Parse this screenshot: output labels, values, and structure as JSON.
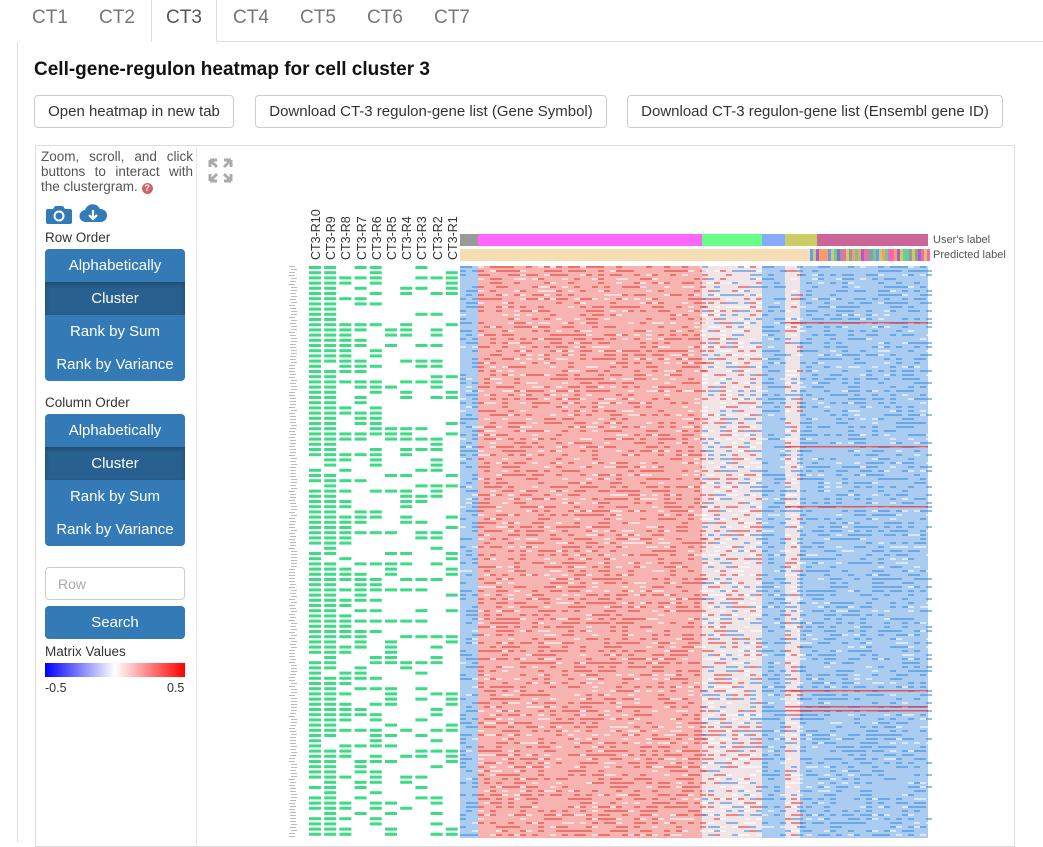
{
  "tabs": [
    {
      "label": "CT1"
    },
    {
      "label": "CT2"
    },
    {
      "label": "CT3",
      "active": true
    },
    {
      "label": "CT4"
    },
    {
      "label": "CT5"
    },
    {
      "label": "CT6"
    },
    {
      "label": "CT7"
    }
  ],
  "title": "Cell-gene-regulon heatmap for cell cluster 3",
  "buttons": {
    "open": "Open heatmap in new tab",
    "download_symbol": "Download CT-3 regulon-gene list (Gene Symbol)",
    "download_ensembl": "Download CT-3 regulon-gene list (Ensembl gene ID)"
  },
  "controls": {
    "hint": "Zoom, scroll, and click buttons to interact with the clustergram.",
    "help_icon": "?",
    "row_order_label": "Row Order",
    "row_order": [
      "Alphabetically",
      "Cluster",
      "Rank by Sum",
      "Rank by Variance"
    ],
    "row_order_active": "Cluster",
    "column_order_label": "Column Order",
    "column_order": [
      "Alphabetically",
      "Cluster",
      "Rank by Sum",
      "Rank by Variance"
    ],
    "column_order_active": "Cluster",
    "search_placeholder": "Row",
    "search_button": "Search",
    "matrix_values_label": "Matrix Values",
    "matrix_min": "-0.5",
    "matrix_max": "0.5"
  },
  "heatmap": {
    "regulon_columns": [
      "CT3-R10",
      "CT3-R9",
      "CT3-R8",
      "CT3-R7",
      "CT3-R6",
      "CT3-R5",
      "CT3-R4",
      "CT3-R3",
      "CT3-R2",
      "CT3-R1"
    ],
    "category_labels": [
      "User's label",
      "Predicted label"
    ],
    "colors": {
      "regulon_green": "#3ddc84",
      "high": "#e8393a",
      "low": "#3b8be0",
      "user_cat": [
        "#999999",
        "#ff66ff",
        "#66ff88",
        "#88aaff",
        "#cccc66",
        "#cc6699"
      ],
      "predicted_bg": "#f5deb3"
    }
  },
  "icons": [
    "camera-icon",
    "download-icon",
    "expand-icon",
    "help-icon"
  ]
}
